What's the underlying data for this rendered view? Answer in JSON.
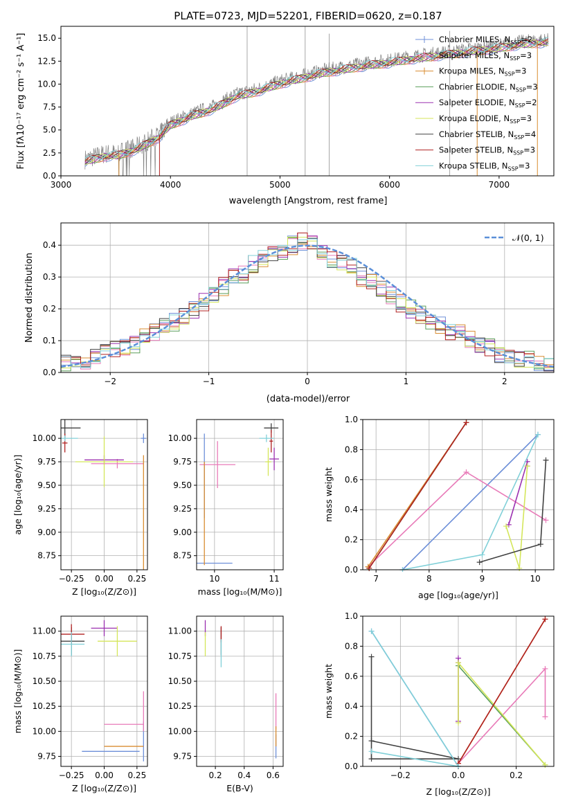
{
  "chart_data": [
    {
      "id": "spectrum",
      "type": "line",
      "title": "PLATE=0723, MJD=52201, FIBERID=0620, z=0.187",
      "xlabel": "wavelength [Angstrom, rest frame]",
      "ylabel": "Flux [fλ10⁻¹⁷ erg cm⁻² s⁻¹ A⁻¹]",
      "xlim": [
        3000,
        7500
      ],
      "ylim": [
        0,
        16.3
      ],
      "xticks": [
        3000,
        4000,
        5000,
        6000,
        7000
      ],
      "yticks": [
        0.0,
        2.5,
        5.0,
        7.5,
        10.0,
        12.5,
        15.0
      ],
      "grid": false,
      "legend_position": "top-right",
      "observed_envelope": {
        "wavelength": [
          3220,
          3400,
          3520,
          3700,
          3900,
          4000,
          4200,
          4400,
          4600,
          4800,
          5000,
          5200,
          5400,
          5600,
          5800,
          6000,
          6200,
          6400,
          6600,
          6800,
          7000,
          7200,
          7400
        ],
        "flux": [
          1.8,
          2.4,
          2.5,
          3.2,
          4.5,
          5.8,
          6.8,
          7.6,
          8.9,
          9.5,
          10.3,
          10.9,
          11.5,
          11.9,
          12.3,
          12.6,
          13.0,
          13.3,
          13.6,
          13.9,
          14.2,
          14.6,
          14.8
        ]
      },
      "series": [
        {
          "name": "Chabrier MILES, N_SSP=2",
          "color": "#6d8fd8",
          "style": "plus"
        },
        {
          "name": "Salpeter MILES, N_SSP=3",
          "color": "#e87ab8",
          "style": "plus"
        },
        {
          "name": "Kroupa MILES, N_SSP=3",
          "color": "#d98c30",
          "style": "plus"
        },
        {
          "name": "Chabrier ELODIE, N_SSP=3",
          "color": "#5a9e5a",
          "style": "line"
        },
        {
          "name": "Salpeter ELODIE, N_SSP=2",
          "color": "#9b30b0",
          "style": "line"
        },
        {
          "name": "Kroupa ELODIE, N_SSP=3",
          "color": "#d4e65a",
          "style": "line"
        },
        {
          "name": "Chabrier STELIB, N_SSP=4",
          "color": "#404040",
          "style": "line"
        },
        {
          "name": "Salpeter STELIB, N_SSP=3",
          "color": "#b02020",
          "style": "line"
        },
        {
          "name": "Kroupa STELIB, N_SSP=3",
          "color": "#80d0d8",
          "style": "line"
        }
      ]
    },
    {
      "id": "residuals",
      "type": "line",
      "xlabel": "(data-model)/error",
      "ylabel": "Normed distribution",
      "xlim": [
        -2.5,
        2.5
      ],
      "ylim": [
        0,
        0.47
      ],
      "xticks": [
        -2,
        -1,
        0,
        1,
        2
      ],
      "yticks": [
        0.0,
        0.1,
        0.2,
        0.3,
        0.4
      ],
      "grid": true,
      "legend": "𝒩(0, 1)",
      "legend_position": "top-right",
      "bin_width": 0.1,
      "hist_base": [
        0.03,
        0.035,
        0.04,
        0.05,
        0.06,
        0.07,
        0.075,
        0.09,
        0.11,
        0.13,
        0.15,
        0.16,
        0.18,
        0.2,
        0.22,
        0.24,
        0.27,
        0.3,
        0.31,
        0.34,
        0.36,
        0.37,
        0.38,
        0.4,
        0.41,
        0.4,
        0.38,
        0.35,
        0.34,
        0.33,
        0.3,
        0.28,
        0.26,
        0.24,
        0.22,
        0.2,
        0.18,
        0.16,
        0.15,
        0.13,
        0.12,
        0.1,
        0.09,
        0.08,
        0.06,
        0.05,
        0.045,
        0.04,
        0.035,
        0.03
      ]
    },
    {
      "id": "age-vs-Z",
      "type": "scatter",
      "xlabel": "Z [log₁₀(Z/Z⊙)]",
      "ylabel": "age  [log₁₀(age/yr)]",
      "xlim": [
        -0.33,
        0.33
      ],
      "ylim": [
        8.6,
        10.2
      ],
      "xticks": [
        "-0.25",
        "0.00",
        "0.25"
      ],
      "yticks": [
        "8.75",
        "9.00",
        "9.25",
        "9.50",
        "9.75",
        "10.00"
      ],
      "grid": true,
      "points": [
        {
          "series": 0,
          "x": 0.3,
          "y": 10.0,
          "xerr": 0.02,
          "yerr": 0.05
        },
        {
          "series": 0,
          "x": -0.18,
          "y": 8.67,
          "xerr": 0.0,
          "yerr": 0.0
        },
        {
          "series": 1,
          "x": 0.1,
          "y": 9.73,
          "xerr": 0.2,
          "yerr": 0.05
        },
        {
          "series": 2,
          "x": 0.3,
          "y": 8.67,
          "xerr": 0.0,
          "yerr": 1.15
        },
        {
          "series": 4,
          "x": 0.0,
          "y": 9.77,
          "xerr": 0.15,
          "yerr": 0.05
        },
        {
          "series": 5,
          "x": 0.0,
          "y": 9.75,
          "xerr": 0.22,
          "yerr": 0.27
        },
        {
          "series": 6,
          "x": -0.3,
          "y": 10.11,
          "xerr": 0.12,
          "yerr": 0.1
        },
        {
          "series": 7,
          "x": -0.3,
          "y": 9.95,
          "xerr": 0.02,
          "yerr": 0.1
        },
        {
          "series": 8,
          "x": -0.3,
          "y": 10.0,
          "xerr": 0.1,
          "yerr": 0.03
        }
      ]
    },
    {
      "id": "age-vs-mass",
      "type": "scatter",
      "xlabel": "mass [log₁₀(M/M⊙)]",
      "xlim": [
        9.7,
        11.15
      ],
      "ylim": [
        8.6,
        10.2
      ],
      "xticks": [
        "10",
        "11"
      ],
      "yticks": [
        "8.75",
        "9.00",
        "9.25",
        "9.50",
        "9.75",
        "10.00"
      ],
      "grid": true,
      "points": [
        {
          "series": 0,
          "x": 10.0,
          "y": 8.67,
          "xerr": 0.3,
          "yerr": 0.0
        },
        {
          "series": 0,
          "x": 9.83,
          "y": 9.6,
          "xerr": 0.0,
          "yerr": 0.45
        },
        {
          "series": 1,
          "x": 10.05,
          "y": 9.72,
          "xerr": 0.3,
          "yerr": 0.25
        },
        {
          "series": 2,
          "x": 9.83,
          "y": 9.2,
          "xerr": 0.0,
          "yerr": 0.55
        },
        {
          "series": 4,
          "x": 11.0,
          "y": 9.78,
          "xerr": 0.08,
          "yerr": 0.12
        },
        {
          "series": 5,
          "x": 10.9,
          "y": 9.75,
          "xerr": 0.05,
          "yerr": 0.15
        },
        {
          "series": 6,
          "x": 10.95,
          "y": 10.11,
          "xerr": 0.12,
          "yerr": 0.05
        },
        {
          "series": 7,
          "x": 10.95,
          "y": 9.97,
          "xerr": 0.03,
          "yerr": 0.12
        },
        {
          "series": 8,
          "x": 10.87,
          "y": 10.0,
          "xerr": 0.12,
          "yerr": 0.04
        }
      ]
    },
    {
      "id": "mass-weight-vs-age",
      "type": "line",
      "xlabel": "age  [log₁₀(age/yr)]",
      "ylabel": "mass weight",
      "xlim": [
        6.75,
        10.35
      ],
      "ylim": [
        0,
        1
      ],
      "xticks": [
        "7",
        "8",
        "9",
        "10"
      ],
      "yticks": [
        "0.0",
        "0.2",
        "0.4",
        "0.6",
        "0.8",
        "1.0"
      ],
      "grid": true,
      "series_points": [
        {
          "series": 0,
          "x": [
            7.5,
            10.05
          ],
          "y": [
            0.0,
            0.9
          ]
        },
        {
          "series": 1,
          "x": [
            6.85,
            8.7,
            10.2
          ],
          "y": [
            0.02,
            0.65,
            0.33
          ]
        },
        {
          "series": 2,
          "x": [
            6.85,
            8.7
          ],
          "y": [
            0.02,
            0.98
          ]
        },
        {
          "series": 3,
          "x": [
            6.87,
            8.7
          ],
          "y": [
            0.01,
            0.98
          ]
        },
        {
          "series": 4,
          "x": [
            9.5,
            9.85,
            9.85
          ],
          "y": [
            0.3,
            0.72,
            0.69
          ]
        },
        {
          "series": 5,
          "x": [
            9.45,
            9.7,
            9.85
          ],
          "y": [
            0.29,
            0.01,
            0.69
          ]
        },
        {
          "series": 6,
          "x": [
            8.95,
            10.1,
            10.2
          ],
          "y": [
            0.05,
            0.17,
            0.73
          ]
        },
        {
          "series": 7,
          "x": [
            6.87,
            8.7
          ],
          "y": [
            0.01,
            0.98
          ]
        },
        {
          "series": 8,
          "x": [
            7.5,
            9.0,
            10.05
          ],
          "y": [
            0.0,
            0.1,
            0.9
          ]
        }
      ]
    },
    {
      "id": "mass-vs-Z",
      "type": "scatter",
      "xlabel": "Z [log₁₀(Z/Z⊙)]",
      "ylabel": "mass [log₁₀(M/M⊙)]",
      "xlim": [
        -0.33,
        0.33
      ],
      "ylim": [
        9.65,
        11.15
      ],
      "xticks": [
        "-0.25",
        "0.00",
        "0.25"
      ],
      "yticks": [
        "9.75",
        "10.00",
        "10.25",
        "10.50",
        "10.75",
        "11.00"
      ],
      "grid": true,
      "points": [
        {
          "series": 0,
          "x": 0.05,
          "y": 9.8,
          "xerr": 0.22,
          "yerr": 0.0
        },
        {
          "series": 0,
          "x": 0.3,
          "y": 9.9,
          "xerr": 0.0,
          "yerr": 0.2
        },
        {
          "series": 1,
          "x": 0.15,
          "y": 10.07,
          "xerr": 0.15,
          "yerr": 0.0
        },
        {
          "series": 1,
          "x": 0.3,
          "y": 10.2,
          "xerr": 0.0,
          "yerr": 0.2
        },
        {
          "series": 2,
          "x": 0.15,
          "y": 9.85,
          "xerr": 0.15,
          "yerr": 0.0
        },
        {
          "series": 4,
          "x": 0.0,
          "y": 11.03,
          "xerr": 0.1,
          "yerr": 0.08
        },
        {
          "series": 5,
          "x": 0.1,
          "y": 10.9,
          "xerr": 0.15,
          "yerr": 0.15
        },
        {
          "series": 6,
          "x": -0.25,
          "y": 10.9,
          "xerr": 0.1,
          "yerr": 0.14
        },
        {
          "series": 7,
          "x": -0.25,
          "y": 10.97,
          "xerr": 0.1,
          "yerr": 0.1
        },
        {
          "series": 8,
          "x": -0.25,
          "y": 10.87,
          "xerr": 0.1,
          "yerr": 0.12
        }
      ]
    },
    {
      "id": "mass-vs-EBV",
      "type": "scatter",
      "xlabel": "E(B-V)",
      "xlim": [
        0.07,
        0.67
      ],
      "ylim": [
        9.65,
        11.15
      ],
      "xticks": [
        "0.2",
        "0.4",
        "0.6"
      ],
      "yticks": [
        "9.75",
        "10.00",
        "10.25",
        "10.50",
        "10.75",
        "11.00"
      ],
      "grid": true,
      "points": [
        {
          "series": 0,
          "x": 0.62,
          "y": 9.85,
          "xerr": 0.0,
          "yerr": 0.12
        },
        {
          "series": 1,
          "x": 0.62,
          "y": 10.2,
          "xerr": 0.0,
          "yerr": 0.18
        },
        {
          "series": 2,
          "x": 0.62,
          "y": 9.95,
          "xerr": 0.0,
          "yerr": 0.1
        },
        {
          "series": 4,
          "x": 0.13,
          "y": 11.03,
          "xerr": 0.0,
          "yerr": 0.08
        },
        {
          "series": 5,
          "x": 0.13,
          "y": 10.87,
          "xerr": 0.0,
          "yerr": 0.12
        },
        {
          "series": 6,
          "x": 0.24,
          "y": 10.9,
          "xerr": 0.0,
          "yerr": 0.14
        },
        {
          "series": 7,
          "x": 0.24,
          "y": 10.97,
          "xerr": 0.0,
          "yerr": 0.08
        },
        {
          "series": 8,
          "x": 0.24,
          "y": 10.78,
          "xerr": 0.0,
          "yerr": 0.14
        }
      ]
    },
    {
      "id": "mass-weight-vs-Z",
      "type": "line",
      "xlabel": "Z [log₁₀(Z/Z⊙)]",
      "ylabel": "mass weight",
      "xlim": [
        -0.33,
        0.33
      ],
      "ylim": [
        0,
        1
      ],
      "xticks": [
        "-0.2",
        "0.0",
        "0.2"
      ],
      "yticks": [
        "0.0",
        "0.2",
        "0.4",
        "0.6",
        "0.8",
        "1.0"
      ],
      "grid": true,
      "series_points": [
        {
          "series": 0,
          "x": [
            -0.3,
            0.0
          ],
          "y": [
            0.9,
            0.0
          ]
        },
        {
          "series": 1,
          "x": [
            0.0,
            0.3,
            0.3
          ],
          "y": [
            0.02,
            0.65,
            0.33
          ]
        },
        {
          "series": 2,
          "x": [
            0.0,
            0.3
          ],
          "y": [
            0.02,
            0.98
          ]
        },
        {
          "series": 3,
          "x": [
            0.0,
            0.3
          ],
          "y": [
            0.67,
            0.01
          ]
        },
        {
          "series": 4,
          "x": [
            0.0,
            0.0,
            0.0
          ],
          "y": [
            0.3,
            0.72,
            0.69
          ]
        },
        {
          "series": 5,
          "x": [
            0.0,
            0.0,
            0.3
          ],
          "y": [
            0.29,
            0.69,
            0.01
          ]
        },
        {
          "series": 6,
          "x": [
            -0.3,
            -0.3,
            0.0,
            -0.3
          ],
          "y": [
            0.73,
            0.05,
            0.05,
            0.17
          ]
        },
        {
          "series": 7,
          "x": [
            0.0,
            0.3
          ],
          "y": [
            0.02,
            0.98
          ]
        },
        {
          "series": 8,
          "x": [
            -0.3,
            0.0,
            -0.3
          ],
          "y": [
            0.9,
            0.0,
            0.1
          ]
        }
      ]
    }
  ]
}
